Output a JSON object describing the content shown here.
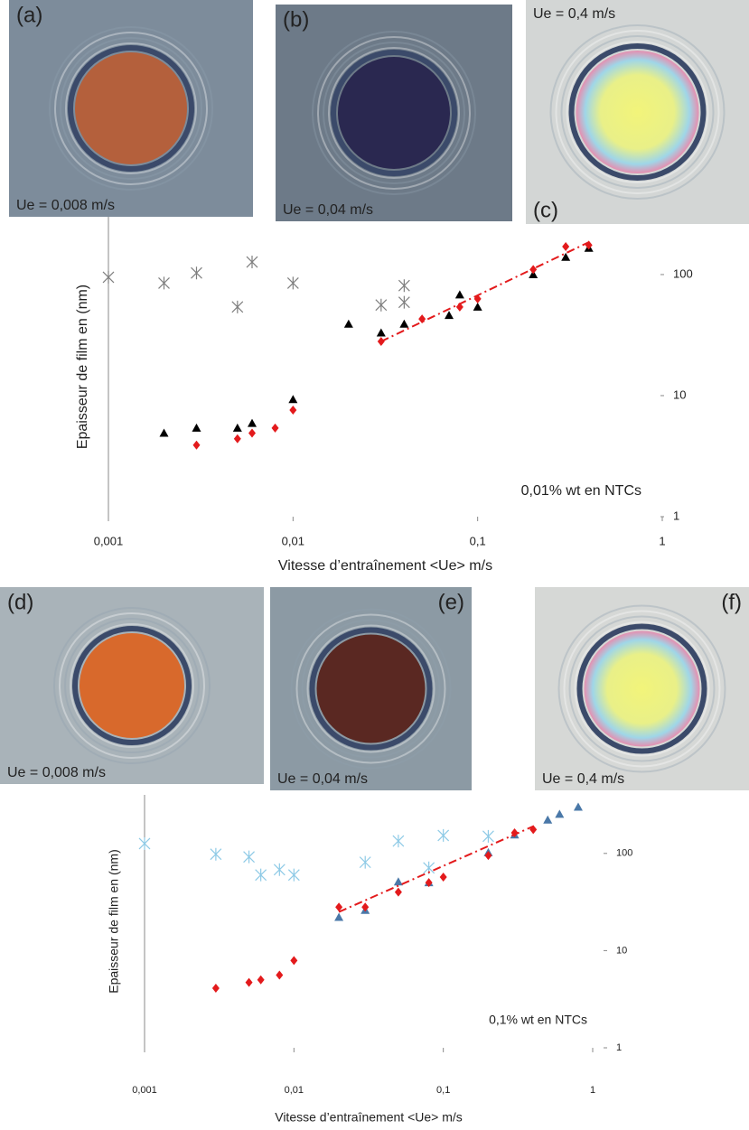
{
  "chart_data": [
    {
      "type": "scatter",
      "xscale": "log",
      "yscale": "log",
      "xlabel": "Vitesse d’entraînement <Ue> m/s",
      "ylabel": "Epaisseur de film en (nm)",
      "annotation": "0,01% wt en NTCs",
      "panels": [
        {
          "label": "(a)",
          "caption": "Ue = 0,008 m/s"
        },
        {
          "label": "(b)",
          "caption": "Ue = 0,04 m/s"
        },
        {
          "label": "(c)",
          "caption": "Ue = 0,4 m/s"
        }
      ],
      "xlim": [
        0.001,
        1
      ],
      "xticks": [
        {
          "value": 0.001,
          "label": "0,001"
        },
        {
          "value": 0.01,
          "label": "0,01"
        },
        {
          "value": 0.1,
          "label": "0,1"
        },
        1
      ],
      "ylim": [
        1,
        300
      ],
      "yticks": [
        1,
        10,
        100
      ],
      "series": [
        {
          "color": "#7f7f7f",
          "marker": "star",
          "x": [
            0.001,
            0.002,
            0.003,
            0.005,
            0.006,
            0.01,
            0.03,
            0.04,
            0.04
          ],
          "values": [
            95,
            85,
            103,
            54,
            127,
            85,
            56,
            81,
            59
          ]
        },
        {
          "color": "#000000",
          "marker": "triangle",
          "x": [
            0.002,
            0.003,
            0.005,
            0.006,
            0.01,
            0.02,
            0.03,
            0.04,
            0.07,
            0.08,
            0.1,
            0.2,
            0.3,
            0.4
          ],
          "values": [
            4.9,
            5.4,
            5.4,
            5.9,
            9.3,
            39,
            33,
            39,
            46,
            68,
            54,
            100,
            139,
            165
          ]
        },
        {
          "color": "#e31a1c",
          "marker": "diamond",
          "x": [
            0.003,
            0.005,
            0.006,
            0.008,
            0.01,
            0.03,
            0.05,
            0.08,
            0.1,
            0.2,
            0.3,
            0.4
          ],
          "values": [
            3.9,
            4.4,
            4.9,
            5.4,
            7.6,
            28,
            43,
            54,
            63,
            110,
            170,
            175
          ]
        },
        {
          "color": "#e31a1c",
          "marker": "none",
          "line": "dashdot",
          "x": [
            0.03,
            0.4
          ],
          "values": [
            28,
            185
          ]
        }
      ]
    },
    {
      "type": "scatter",
      "xscale": "log",
      "yscale": "log",
      "xlabel": "Vitesse d’entraînement <Ue> m/s",
      "ylabel": "Epaisseur de film en (nm)",
      "annotation": "0,1% wt en NTCs",
      "panels": [
        {
          "label": "(d)",
          "caption": "Ue = 0,008 m/s"
        },
        {
          "label": "(e)",
          "caption": "Ue = 0,04 m/s"
        },
        {
          "label": "(f)",
          "caption": "Ue = 0,4 m/s"
        }
      ],
      "xlim": [
        0.001,
        1
      ],
      "xticks": [
        {
          "value": 0.001,
          "label": "0,001"
        },
        {
          "value": 0.01,
          "label": "0,01"
        },
        {
          "value": 0.1,
          "label": "0,1"
        },
        1
      ],
      "ylim": [
        1,
        400
      ],
      "yticks": [
        1,
        10,
        100
      ],
      "series": [
        {
          "color": "#8ecae6",
          "marker": "star",
          "x": [
            0.001,
            0.003,
            0.005,
            0.006,
            0.008,
            0.01,
            0.03,
            0.05,
            0.08,
            0.1,
            0.2
          ],
          "values": [
            126,
            98,
            92,
            60,
            68,
            60,
            81,
            134,
            71,
            153,
            150
          ]
        },
        {
          "color": "#4a78a8",
          "marker": "triangle",
          "x": [
            0.02,
            0.03,
            0.05,
            0.08,
            0.2,
            0.3,
            0.5,
            0.6,
            0.8
          ],
          "values": [
            22,
            26,
            51,
            50,
            102,
            155,
            221,
            253,
            300
          ]
        },
        {
          "color": "#e31a1c",
          "marker": "diamond",
          "x": [
            0.003,
            0.005,
            0.006,
            0.008,
            0.01,
            0.02,
            0.03,
            0.05,
            0.08,
            0.1,
            0.2,
            0.3,
            0.4
          ],
          "values": [
            4.1,
            4.7,
            5,
            5.6,
            7.9,
            28,
            28,
            40,
            50,
            57,
            95,
            163,
            176
          ]
        },
        {
          "color": "#e31a1c",
          "marker": "none",
          "line": "dashdot",
          "x": [
            0.02,
            0.4
          ],
          "values": [
            25,
            190
          ]
        }
      ]
    }
  ]
}
